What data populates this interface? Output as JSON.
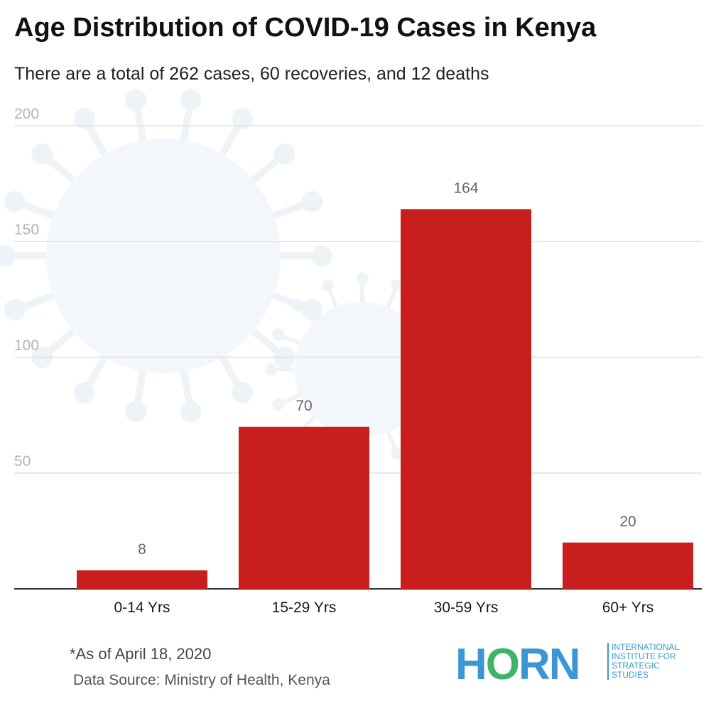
{
  "header": {
    "title": "Age Distribution of COVID-19 Cases in Kenya",
    "subtitle": "There are a total of 262 cases, 60 recoveries, and 12 deaths"
  },
  "footer": {
    "note": "*As of April 18, 2020",
    "source": "Data Source: Ministry of Health, Kenya"
  },
  "logo": {
    "mark": "HORN",
    "lines": [
      "INTERNATIONAL",
      "INSTITUTE FOR",
      "STRATEGIC",
      "STUDIES"
    ],
    "color": "#3a97d4",
    "accent": "#3db36b"
  },
  "chart_data": {
    "type": "bar",
    "categories": [
      "0-14 Yrs",
      "15-29 Yrs",
      "30-59 Yrs",
      "60+ Yrs"
    ],
    "values": [
      8,
      70,
      164,
      20
    ],
    "data_labels": [
      "8",
      "70",
      "164",
      "20"
    ],
    "yticks": [
      50,
      100,
      150,
      200
    ],
    "ylim": [
      0,
      200
    ],
    "grid": true,
    "bar_color": "#c81e1e",
    "grid_color": "#e2e2e2",
    "axis_color": "#333333"
  }
}
